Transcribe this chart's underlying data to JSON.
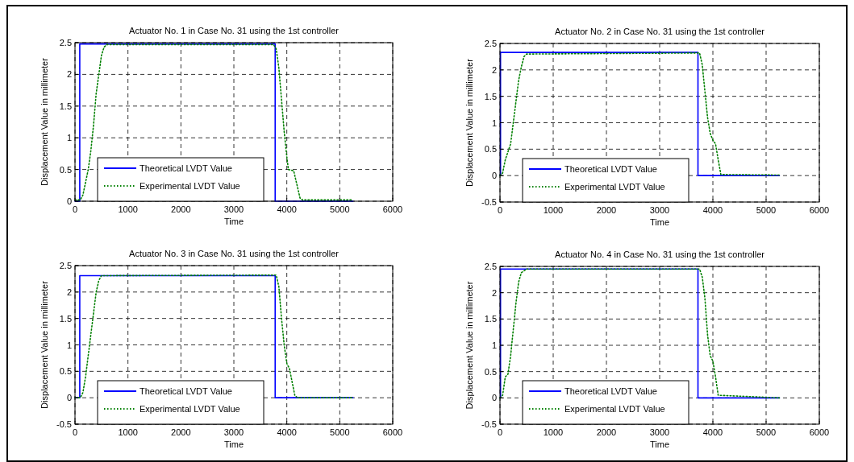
{
  "chart_data": [
    {
      "type": "line",
      "title": "Actuator No. 1 in Case No. 31 using the 1st controller",
      "xlabel": "Time",
      "ylabel": "Displacement Value in millimeter",
      "xlim": [
        0,
        6000
      ],
      "ylim": [
        0,
        2.5
      ],
      "xticks": [
        0,
        1000,
        2000,
        3000,
        4000,
        5000,
        6000
      ],
      "yticks": [
        0,
        0.5,
        1,
        1.5,
        2,
        2.5
      ],
      "grid": true,
      "legend": "bottom left",
      "series": [
        {
          "name": "Theoretical LVDT Value",
          "color": "#0000ff",
          "line_style": "solid",
          "marker": "none",
          "x": [
            0,
            90,
            90,
            3780,
            3780,
            5250
          ],
          "values": [
            0,
            0,
            2.48,
            2.48,
            0,
            0
          ]
        },
        {
          "name": "Experimental LVDT Value",
          "color": "#008000",
          "line_style": "dotted",
          "x": [
            0,
            100,
            150,
            200,
            250,
            300,
            350,
            400,
            450,
            500,
            550,
            600,
            3750,
            3800,
            3850,
            3900,
            3950,
            4000,
            4030,
            4130,
            4180,
            4250,
            4300,
            5250
          ],
          "values": [
            0.02,
            0.02,
            0.1,
            0.3,
            0.5,
            0.8,
            1.2,
            1.7,
            2.0,
            2.3,
            2.43,
            2.47,
            2.47,
            2.4,
            2.1,
            1.6,
            1.1,
            0.7,
            0.5,
            0.48,
            0.3,
            0.05,
            0.02,
            0.02
          ]
        }
      ]
    },
    {
      "type": "line",
      "title": "Actuator No. 2 in Case No. 31 using the 1st controller",
      "xlabel": "Time",
      "ylabel": "Displacement Value in millimeter",
      "xlim": [
        0,
        6000
      ],
      "ylim": [
        -0.5,
        2.5
      ],
      "xticks": [
        0,
        1000,
        2000,
        3000,
        4000,
        5000,
        6000
      ],
      "yticks": [
        -0.5,
        0,
        0.5,
        1,
        1.5,
        2,
        2.5
      ],
      "grid": true,
      "legend": "bottom left",
      "series": [
        {
          "name": "Theoretical LVDT Value",
          "color": "#0000ff",
          "line_style": "solid",
          "marker": "none",
          "x": [
            0,
            10,
            10,
            3720,
            3720,
            5250
          ],
          "values": [
            0,
            0,
            2.33,
            2.33,
            0,
            0
          ]
        },
        {
          "name": "Experimental LVDT Value",
          "color": "#008000",
          "line_style": "dotted",
          "x": [
            0,
            50,
            100,
            150,
            200,
            250,
            300,
            350,
            400,
            450,
            500,
            3750,
            3800,
            3850,
            3900,
            3950,
            4000,
            4050,
            4100,
            4150,
            5250
          ],
          "values": [
            0,
            0.05,
            0.3,
            0.45,
            0.6,
            1.0,
            1.4,
            1.8,
            2.05,
            2.25,
            2.3,
            2.32,
            2.1,
            1.6,
            1.1,
            0.8,
            0.67,
            0.6,
            0.3,
            0.02,
            0.01
          ]
        }
      ]
    },
    {
      "type": "line",
      "title": "Actuator No. 3 in Case No. 31 using the 1st controller",
      "xlabel": "Time",
      "ylabel": "Displacement Value in millimeter",
      "xlim": [
        0,
        6000
      ],
      "ylim": [
        -0.5,
        2.5
      ],
      "xticks": [
        0,
        1000,
        2000,
        3000,
        4000,
        5000,
        6000
      ],
      "yticks": [
        -0.5,
        0,
        0.5,
        1,
        1.5,
        2,
        2.5
      ],
      "grid": true,
      "legend": "bottom left",
      "series": [
        {
          "name": "Theoretical LVDT Value",
          "color": "#0000ff",
          "line_style": "solid",
          "marker": "none",
          "x": [
            0,
            90,
            90,
            3780,
            3780,
            5250
          ],
          "values": [
            0,
            0,
            2.31,
            2.31,
            0,
            0
          ]
        },
        {
          "name": "Experimental LVDT Value",
          "color": "#008000",
          "line_style": "dotted",
          "x": [
            0,
            100,
            150,
            200,
            250,
            300,
            350,
            400,
            450,
            500,
            3800,
            3850,
            3900,
            3950,
            4000,
            4050,
            4100,
            4150,
            4200,
            5250
          ],
          "values": [
            0,
            0,
            0.1,
            0.4,
            0.8,
            1.2,
            1.6,
            2.0,
            2.22,
            2.31,
            2.32,
            2.1,
            1.5,
            1.0,
            0.65,
            0.55,
            0.3,
            0.05,
            0,
            0
          ]
        }
      ]
    },
    {
      "type": "line",
      "title": "Actuator No. 4 in Case No. 31 using the 1st controller",
      "xlabel": "Time",
      "ylabel": "Displacement Value in millimeter",
      "xlim": [
        0,
        6000
      ],
      "ylim": [
        -0.5,
        2.5
      ],
      "xticks": [
        0,
        1000,
        2000,
        3000,
        4000,
        5000,
        6000
      ],
      "yticks": [
        -0.5,
        0,
        0.5,
        1,
        1.5,
        2,
        2.5
      ],
      "grid": true,
      "legend": "bottom left",
      "series": [
        {
          "name": "Theoretical LVDT Value",
          "color": "#0000ff",
          "line_style": "solid",
          "marker": "none",
          "x": [
            0,
            10,
            10,
            3720,
            3720,
            5250
          ],
          "values": [
            0,
            0,
            2.45,
            2.45,
            0,
            0
          ]
        },
        {
          "name": "Experimental LVDT Value",
          "color": "#008000",
          "line_style": "dotted",
          "x": [
            0,
            50,
            100,
            150,
            200,
            250,
            300,
            350,
            400,
            500,
            3750,
            3800,
            3850,
            3900,
            3950,
            4000,
            4050,
            4100,
            5250
          ],
          "values": [
            0,
            0.05,
            0.4,
            0.45,
            0.8,
            1.3,
            1.8,
            2.2,
            2.38,
            2.45,
            2.45,
            2.3,
            1.9,
            1.2,
            0.8,
            0.7,
            0.4,
            0.05,
            0
          ]
        }
      ]
    }
  ]
}
